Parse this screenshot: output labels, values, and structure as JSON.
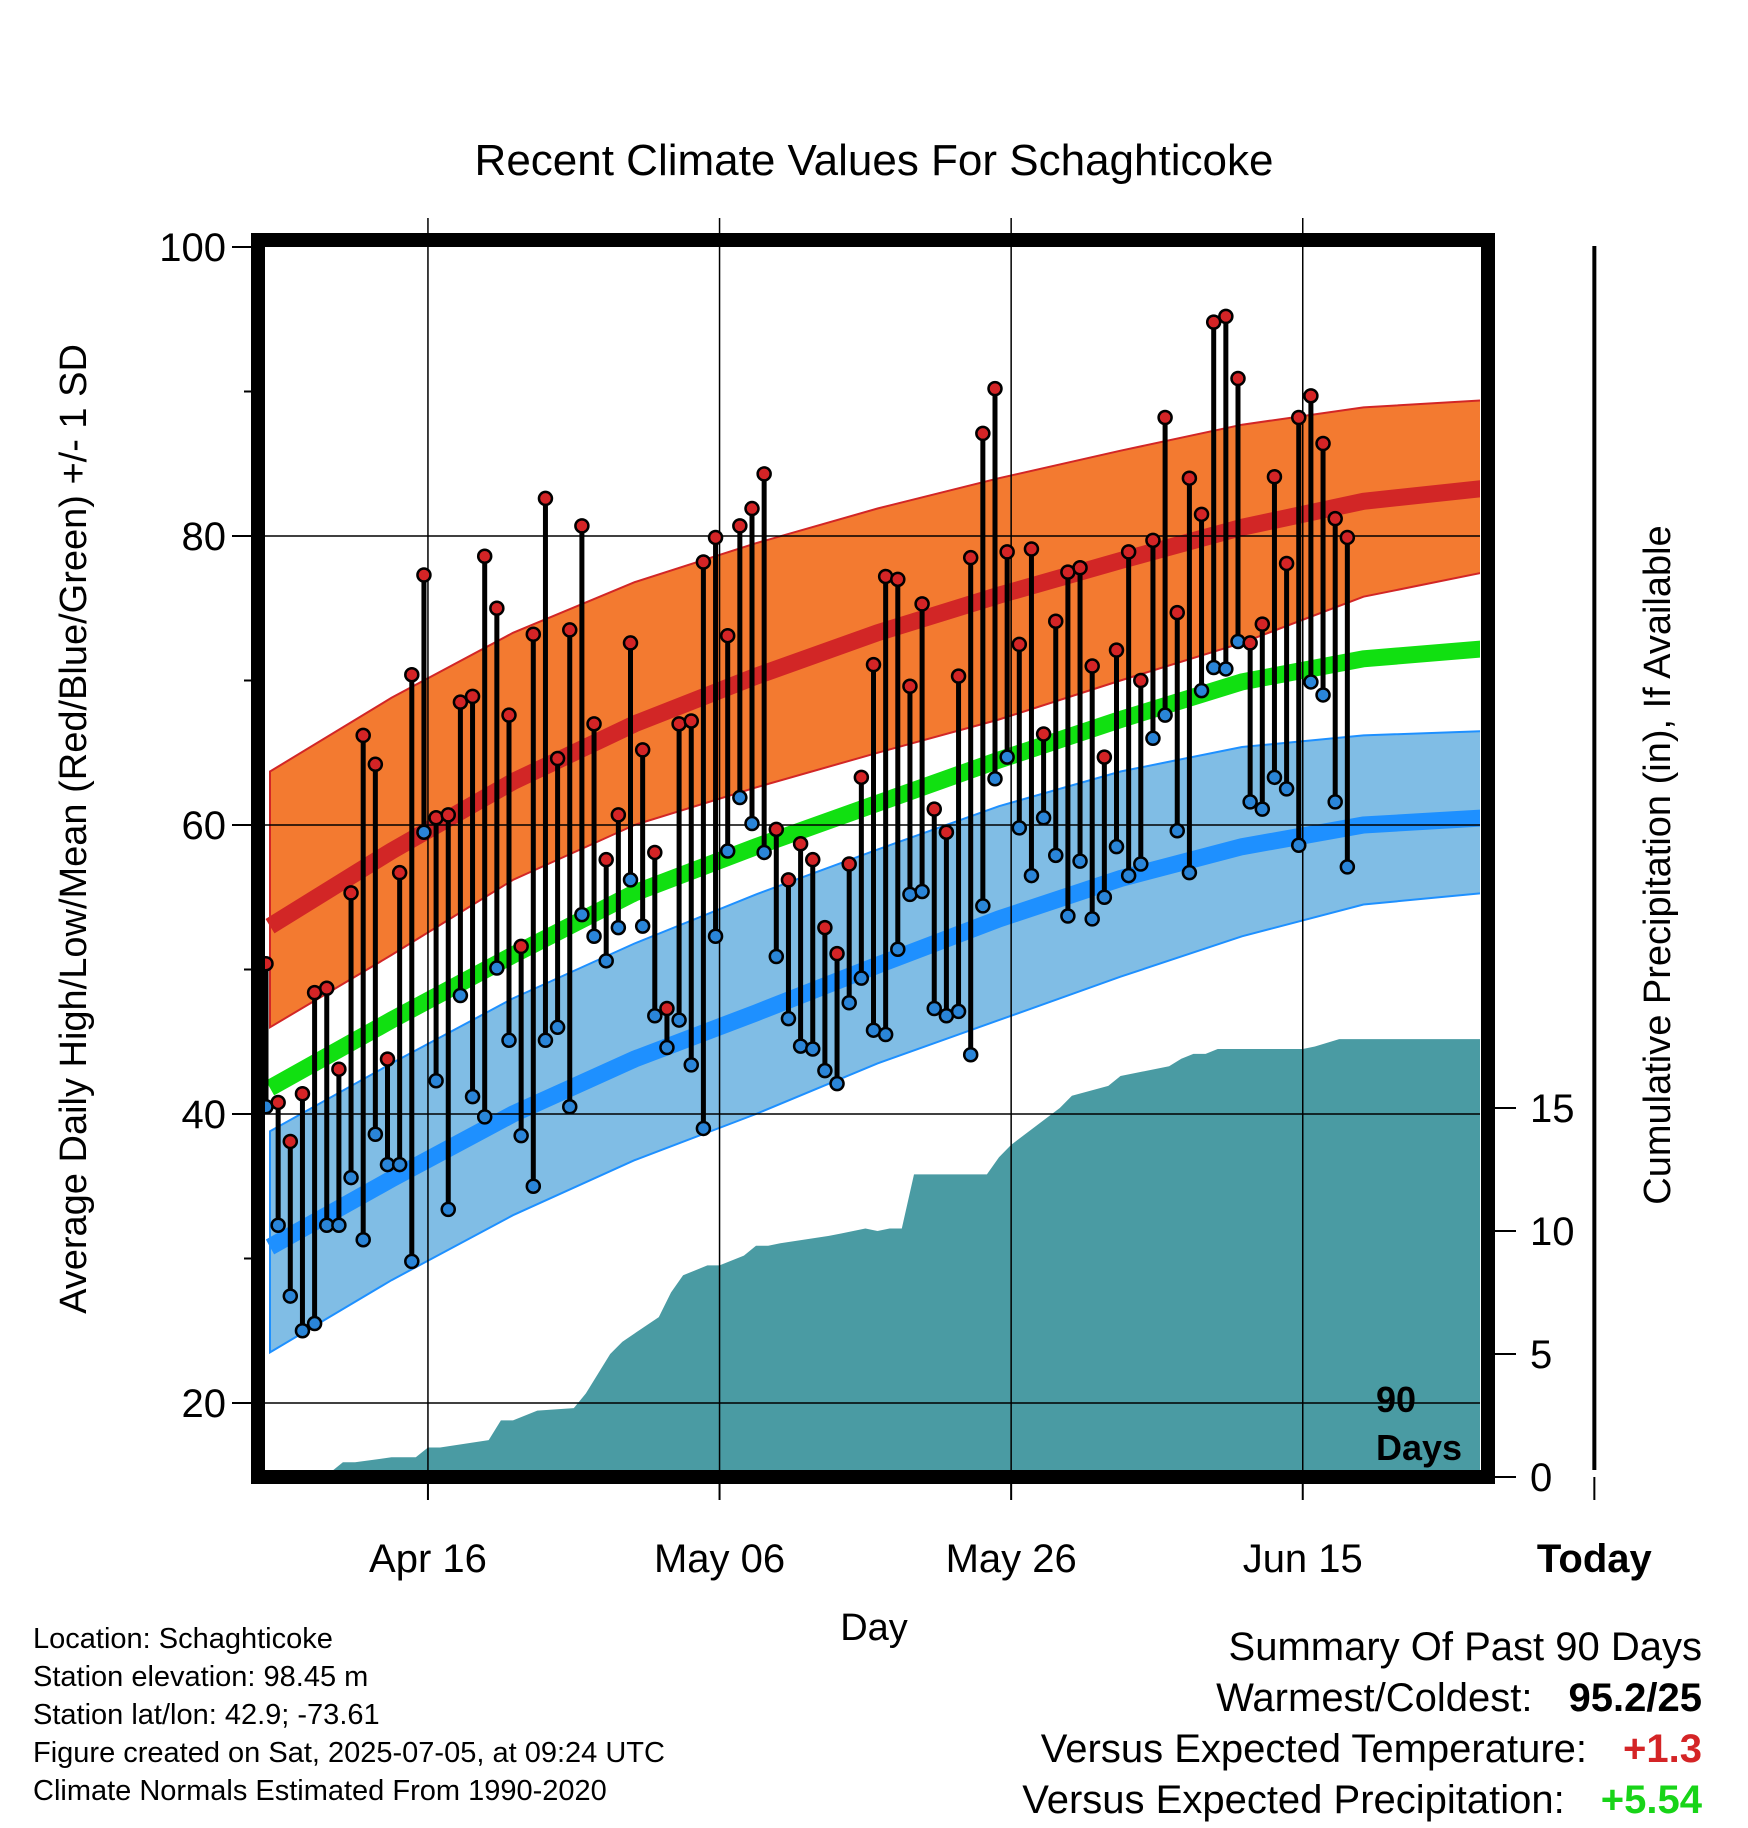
{
  "chart_data": {
    "type": "line",
    "title": "Recent Climate Values For Schaghticoke",
    "xlabel": "Day",
    "ylabel": "Average Daily High/Low/Mean (Red/Blue/Green) +/- 1 SD",
    "y2label": "Cumulative Precipitation (in), If Available",
    "ylim": [
      15,
      101
    ],
    "y2lim": [
      0,
      21
    ],
    "y_ticks": [
      "20",
      "40",
      "60",
      "80",
      "100"
    ],
    "y2_ticks": [
      "0",
      "5",
      "10",
      "15"
    ],
    "x_ticks": [
      "Apr 16",
      "May 06",
      "May 26",
      "Jun 15",
      "Today"
    ],
    "today_marker_label": [
      "90",
      "Days"
    ],
    "grid": true,
    "colors": {
      "high_band": "#f37a30",
      "high_mean": "#d22626",
      "low_band": "#80bde5",
      "low_mean": "#1e90ff",
      "mean": "#11e011",
      "precip": "#4a9ba3",
      "obs_high_point": "#d42426",
      "obs_low_point": "#2a85d8"
    },
    "normals": {
      "days": [
        0,
        10,
        20,
        30,
        40,
        50,
        60,
        70,
        80,
        90,
        100
      ],
      "high_mean": [
        53,
        58.2,
        63,
        67,
        70.3,
        73.3,
        75.9,
        78.3,
        80.6,
        82.4,
        83.3
      ],
      "high_upper": [
        63.7,
        68.8,
        73.3,
        76.8,
        79.5,
        81.9,
        84,
        85.9,
        87.7,
        88.9,
        89.4
      ],
      "high_lower": [
        46,
        51,
        56.2,
        60,
        62.6,
        65,
        67.3,
        70,
        72.6,
        75.8,
        77.5
      ],
      "mean": [
        41.8,
        46.5,
        51,
        55.3,
        58.5,
        61.5,
        64.5,
        67.3,
        69.9,
        71.5,
        72.2
      ],
      "low_mean": [
        30.8,
        35.5,
        40,
        43.8,
        47,
        50.3,
        53.5,
        56.3,
        58.5,
        60,
        60.5
      ],
      "low_upper": [
        38.8,
        43.5,
        48,
        51.8,
        55.2,
        58.3,
        61.3,
        63.7,
        65.4,
        66.2,
        66.5
      ],
      "low_lower": [
        23.5,
        28.5,
        33,
        36.8,
        40,
        43.5,
        46.5,
        49.5,
        52.3,
        54.5,
        55.3
      ]
    },
    "observed_highs": [
      50.4,
      40.8,
      38.1,
      41.4,
      48.4,
      48.7,
      43.1,
      55.3,
      66.2,
      64.2,
      43.8,
      56.7,
      70.4,
      77.3,
      60.5,
      60.7,
      68.5,
      68.9,
      78.6,
      75.0,
      67.6,
      51.6,
      73.2,
      82.6,
      64.6,
      73.5,
      80.7,
      67.0,
      57.6,
      60.7,
      72.6,
      65.2,
      58.1,
      47.3,
      67.0,
      67.2,
      78.2,
      79.9,
      73.1,
      80.7,
      81.9,
      84.3,
      59.7,
      56.2,
      58.7,
      57.6,
      52.9,
      51.1,
      57.3,
      63.3,
      71.1,
      77.2,
      77.0,
      69.6,
      75.3,
      61.1,
      59.5,
      70.3,
      78.5,
      87.1,
      90.2,
      78.9,
      72.5,
      79.1,
      66.3,
      74.1,
      77.5,
      77.8,
      71.0,
      64.7,
      72.1,
      78.9,
      70.0,
      79.7,
      88.2,
      74.7,
      84.0,
      81.5,
      94.8,
      95.2,
      90.9,
      72.6,
      73.9,
      84.1,
      78.1,
      88.2,
      89.7,
      86.4,
      81.2,
      79.9
    ],
    "observed_lows": [
      40.5,
      32.3,
      27.4,
      25.0,
      25.5,
      32.3,
      32.3,
      35.6,
      31.3,
      38.6,
      36.5,
      36.5,
      29.8,
      59.5,
      42.3,
      33.4,
      48.2,
      41.2,
      39.8,
      50.1,
      45.1,
      38.5,
      35.0,
      45.1,
      46.0,
      40.5,
      53.8,
      52.3,
      50.6,
      52.9,
      56.2,
      53.0,
      46.8,
      44.6,
      46.5,
      43.4,
      39.0,
      52.3,
      58.2,
      61.9,
      60.1,
      58.1,
      50.9,
      46.6,
      44.7,
      44.5,
      43.0,
      42.1,
      47.7,
      49.4,
      45.8,
      45.5,
      51.4,
      55.2,
      55.4,
      47.3,
      46.8,
      47.1,
      44.1,
      54.4,
      63.2,
      64.7,
      59.8,
      56.5,
      60.5,
      57.9,
      53.7,
      57.5,
      53.5,
      55.0,
      58.5,
      56.5,
      57.3,
      66.0,
      67.6,
      59.6,
      56.7,
      69.3,
      70.9,
      70.8,
      72.7,
      61.6,
      61.1,
      63.3,
      62.5,
      58.6,
      69.9,
      69.0,
      61.6,
      57.1
    ],
    "cumulative_precip": {
      "days": [
        0,
        3.9,
        5,
        6,
        7,
        10,
        12,
        13,
        14,
        18,
        19,
        20,
        22,
        25,
        26,
        28,
        29,
        32,
        33,
        34,
        36,
        37,
        39,
        40,
        41,
        42,
        46,
        47,
        49,
        50,
        51,
        52,
        53,
        59,
        60,
        61,
        65,
        66,
        69,
        70,
        74,
        75,
        76,
        77,
        78,
        79,
        84,
        85,
        86,
        88,
        90,
        100
      ],
      "values": [
        0,
        0,
        0.2,
        0.6,
        0.6,
        0.8,
        0.8,
        1.2,
        1.2,
        1.5,
        2.3,
        2.3,
        2.7,
        2.8,
        3.4,
        5,
        5.5,
        6.5,
        7.5,
        8.2,
        8.6,
        8.6,
        9.0,
        9.4,
        9.4,
        9.5,
        9.8,
        9.9,
        10.1,
        10.0,
        10.1,
        10.1,
        12.3,
        12.3,
        13.0,
        13.5,
        15.0,
        15.5,
        15.9,
        16.3,
        16.7,
        17.0,
        17.2,
        17.2,
        17.4,
        17.4,
        17.4,
        17.4,
        17.5,
        17.8,
        17.8,
        17.8
      ]
    }
  },
  "info": {
    "location": "Location: Schaghticoke",
    "elevation": "Station elevation: 98.45 m",
    "latlon": "Station lat/lon: 42.9; -73.61",
    "created": "Figure created on Sat, 2025-07-05, at 09:24 UTC",
    "normals": "Climate Normals Estimated From 1990-2020"
  },
  "summary": {
    "title": "Summary Of Past 90 Days",
    "warmest_label": "Warmest/Coldest:",
    "warmest_value": "95.2/25",
    "temp_label": "Versus Expected Temperature:",
    "temp_value": "+1.3",
    "precip_label": "Versus Expected Precipitation:",
    "precip_value": "+5.54"
  }
}
